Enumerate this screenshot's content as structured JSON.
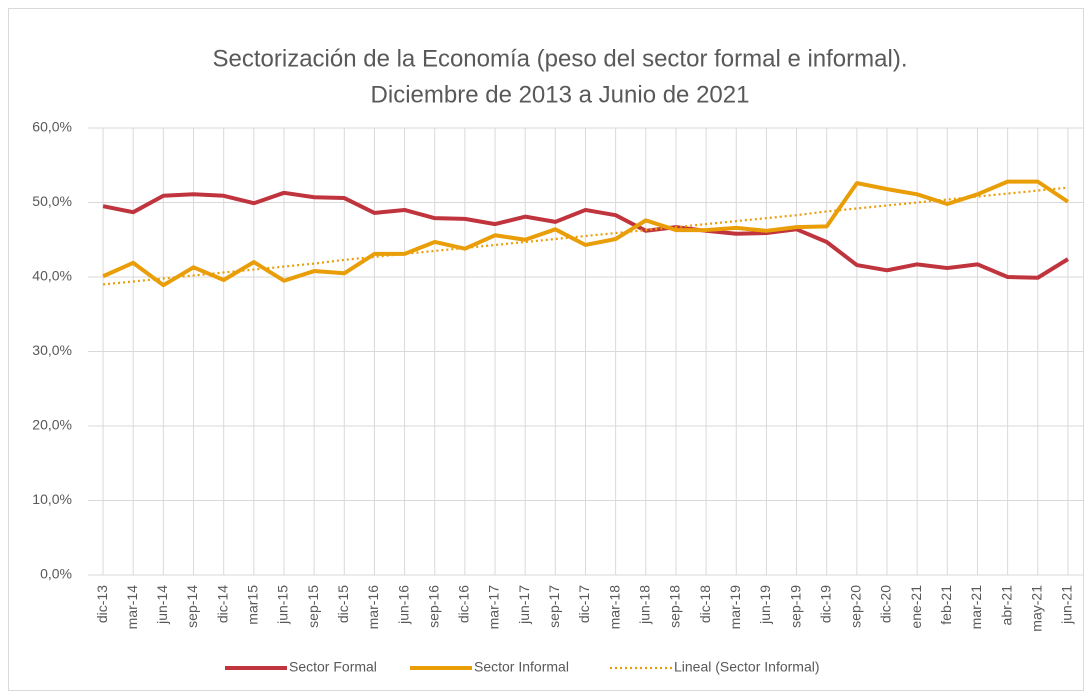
{
  "chart_data": {
    "type": "line",
    "title": [
      "Sectorización de la Economía (peso del sector formal e informal).",
      "Diciembre de 2013 a Junio de 2021"
    ],
    "categories": [
      "dic-13",
      "mar-14",
      "jun-14",
      "sep-14",
      "dic-14",
      "mar15",
      "jun-15",
      "sep-15",
      "dic-15",
      "mar-16",
      "jun-16",
      "sep-16",
      "dic-16",
      "mar-17",
      "jun-17",
      "sep-17",
      "dic-17",
      "mar-18",
      "jun-18",
      "sep-18",
      "dic-18",
      "mar-19",
      "jun-19",
      "sep-19",
      "dic-19",
      "sep-20",
      "dic-20",
      "ene-21",
      "feb-21",
      "mar-21",
      "abr-21",
      "may-21",
      "jun-21"
    ],
    "series": [
      {
        "name": "Sector Formal",
        "color": "#c0343d",
        "style": "solid",
        "values": [
          49.5,
          48.7,
          50.9,
          51.1,
          50.9,
          49.9,
          51.3,
          50.7,
          50.6,
          48.6,
          49.0,
          47.9,
          47.8,
          47.1,
          48.1,
          47.4,
          49.0,
          48.3,
          46.2,
          46.7,
          46.2,
          45.8,
          45.9,
          46.4,
          44.7,
          41.6,
          40.9,
          41.7,
          41.2,
          41.7,
          40.0,
          39.9,
          42.4
        ]
      },
      {
        "name": "Sector Informal",
        "color": "#e99d06",
        "style": "solid",
        "values": [
          40.1,
          41.9,
          38.9,
          41.3,
          39.6,
          42.0,
          39.5,
          40.8,
          40.5,
          43.1,
          43.1,
          44.7,
          43.8,
          45.6,
          45.0,
          46.4,
          44.3,
          45.1,
          47.6,
          46.3,
          46.3,
          46.6,
          46.2,
          46.7,
          46.8,
          52.6,
          51.8,
          51.1,
          49.8,
          51.1,
          52.8,
          52.8,
          50.1
        ]
      },
      {
        "name": "Lineal (Sector Informal)",
        "color": "#e99d06",
        "style": "dotted",
        "values": [
          39.0,
          39.4,
          39.8,
          40.2,
          40.6,
          41.0,
          41.4,
          41.8,
          42.3,
          42.7,
          43.1,
          43.5,
          43.9,
          44.3,
          44.7,
          45.1,
          45.5,
          45.9,
          46.3,
          46.7,
          47.1,
          47.5,
          47.9,
          48.3,
          48.8,
          49.2,
          49.6,
          50.0,
          50.4,
          50.8,
          51.2,
          51.6,
          52.0
        ]
      }
    ],
    "ylim": [
      0,
      60
    ],
    "yticks": [
      {
        "value": 0,
        "label": "0,0%"
      },
      {
        "value": 10,
        "label": "10,0%"
      },
      {
        "value": 20,
        "label": "20,0%"
      },
      {
        "value": 30,
        "label": "30,0%"
      },
      {
        "value": 40,
        "label": "40,0%"
      },
      {
        "value": 50,
        "label": "50,0%"
      },
      {
        "value": 60,
        "label": "60,0%"
      }
    ],
    "grid": true,
    "legend": "bottom"
  }
}
